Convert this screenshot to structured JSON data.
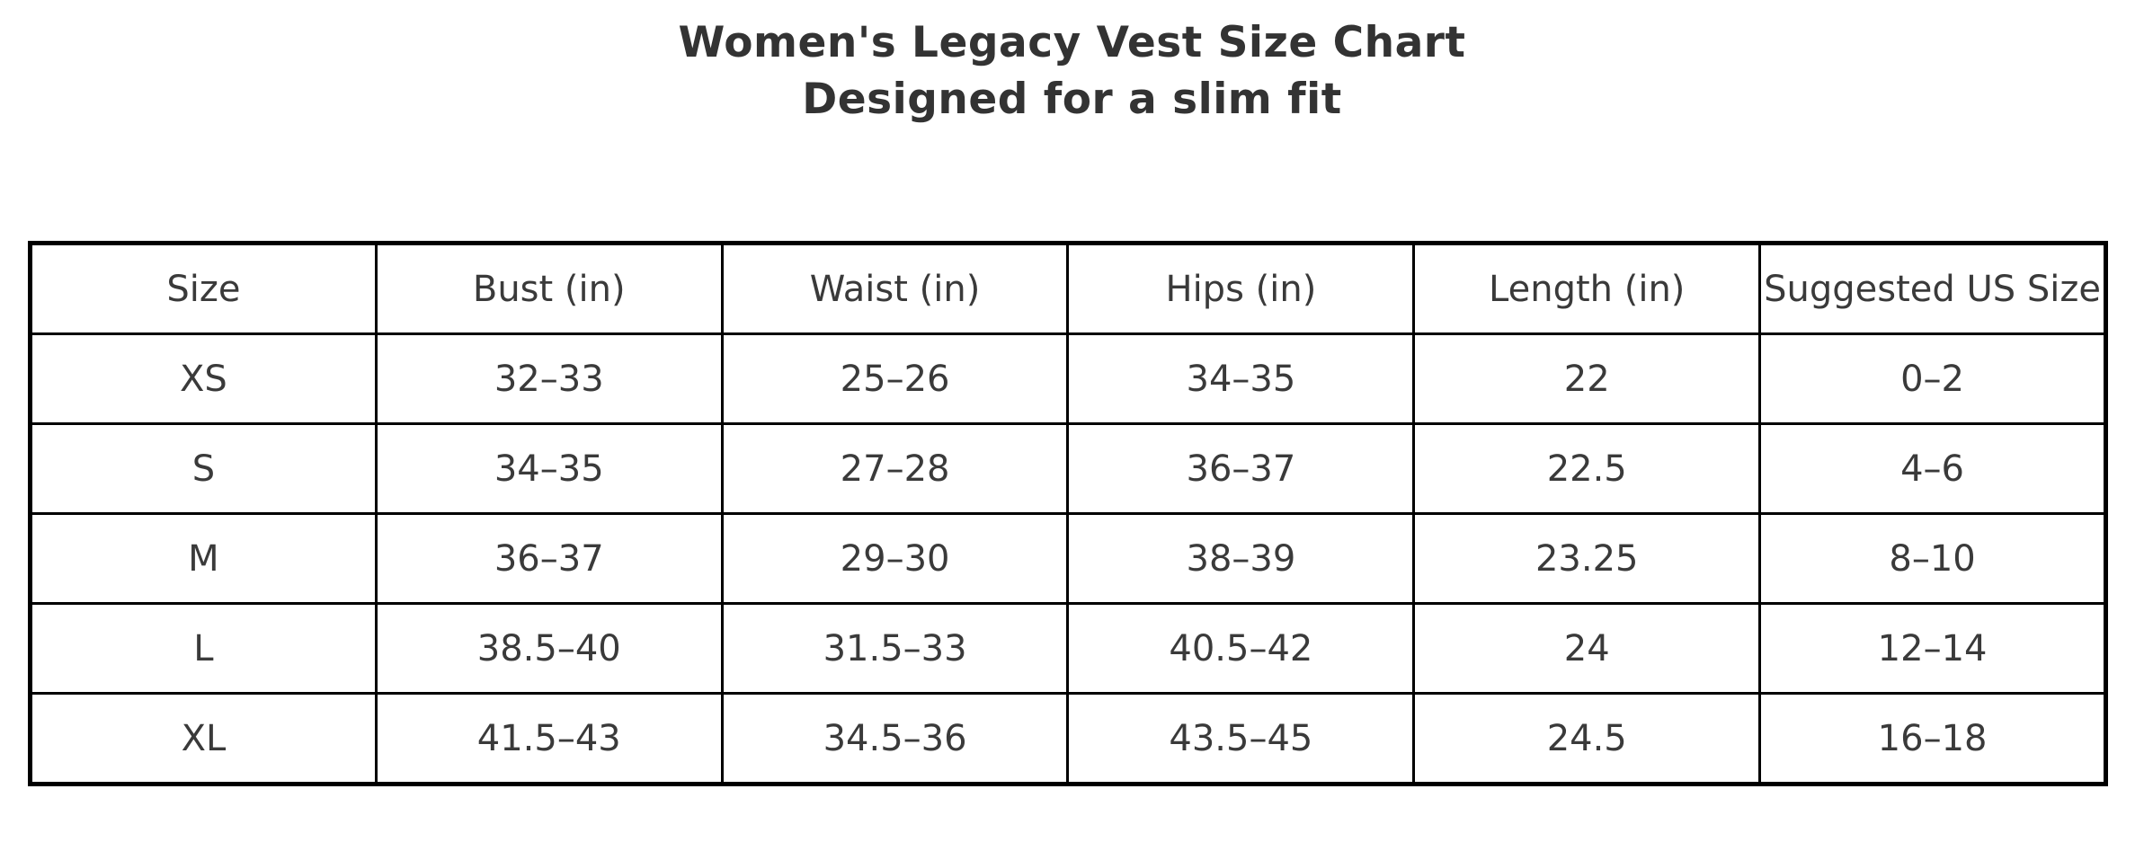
{
  "header": {
    "title_line1": "Women's Legacy Vest Size Chart",
    "title_line2": "Designed for a slim fit"
  },
  "chart_data": {
    "type": "table",
    "title": "Women's Legacy Vest Size Chart",
    "subtitle": "Designed for a slim fit",
    "columns": [
      "Size",
      "Bust (in)",
      "Waist (in)",
      "Hips (in)",
      "Length (in)",
      "Suggested US Size"
    ],
    "rows": [
      [
        "XS",
        "32–33",
        "25–26",
        "34–35",
        "22",
        "0–2"
      ],
      [
        "S",
        "34–35",
        "27–28",
        "36–37",
        "22.5",
        "4–6"
      ],
      [
        "M",
        "36–37",
        "29–30",
        "38–39",
        "23.25",
        "8–10"
      ],
      [
        "L",
        "38.5–40",
        "31.5–33",
        "40.5–42",
        "24",
        "12–14"
      ],
      [
        "XL",
        "41.5–43",
        "34.5–36",
        "43.5–45",
        "24.5",
        "16–18"
      ]
    ],
    "layout": {
      "grid": "full-borders",
      "column_count": 6,
      "row_count": 5,
      "header_row": true
    }
  },
  "colors": {
    "title_text": "#333333",
    "cell_text": "#3a3a3a",
    "border": "#000000",
    "background": "#ffffff"
  }
}
